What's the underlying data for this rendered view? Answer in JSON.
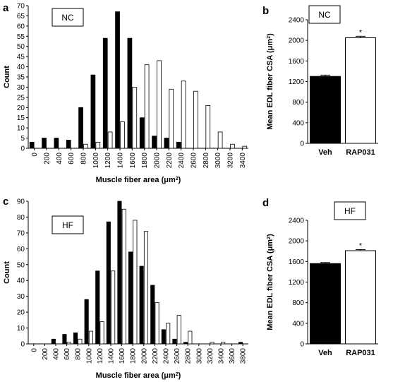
{
  "chart_data": [
    {
      "type": "bar",
      "panel_letter": "a",
      "inset_label": "NC",
      "ylabel": "Count",
      "xlabel": "Muscle fiber area (μm²)",
      "ylim": [
        0,
        70
      ],
      "yticks": [
        0,
        5,
        10,
        15,
        20,
        25,
        30,
        35,
        40,
        45,
        50,
        55,
        60,
        65,
        70
      ],
      "categories": [
        "0",
        "200",
        "400",
        "600",
        "800",
        "1000",
        "1200",
        "1400",
        "1600",
        "1800",
        "2000",
        "2200",
        "2400",
        "2600",
        "2800",
        "3000",
        "3200",
        "3400"
      ],
      "series": [
        {
          "color": "#000000",
          "values": [
            3,
            5,
            5,
            4,
            20,
            36,
            54,
            67,
            54,
            15,
            6,
            5,
            3,
            0,
            0,
            0,
            0,
            0
          ]
        },
        {
          "color": "#ffffff",
          "values": [
            0,
            0,
            0,
            0,
            2,
            3,
            8,
            13,
            30,
            41,
            43,
            29,
            33,
            28,
            21,
            8,
            2,
            1
          ]
        }
      ],
      "legend": "none",
      "grid": false
    },
    {
      "type": "bar",
      "panel_letter": "b",
      "inset_label": "NC",
      "ylabel": "Mean EDL fiber CSA (μm²)",
      "categories": [
        "Veh",
        "RAP031"
      ],
      "values": [
        1300,
        2050
      ],
      "errors": [
        25,
        30
      ],
      "colors": [
        "#000000",
        "#ffffff"
      ],
      "annotations": [
        "",
        "*"
      ],
      "ylim": [
        0,
        2400
      ],
      "yticks": [
        0,
        400,
        800,
        1200,
        1600,
        2000,
        2400
      ]
    },
    {
      "type": "bar",
      "panel_letter": "c",
      "inset_label": "HF",
      "ylabel": "Count",
      "xlabel": "Muscle fiber area (μm²)",
      "ylim": [
        0,
        90
      ],
      "yticks": [
        0,
        10,
        20,
        30,
        40,
        50,
        60,
        70,
        80,
        90
      ],
      "categories": [
        "0",
        "200",
        "400",
        "600",
        "800",
        "1000",
        "1200",
        "1400",
        "1600",
        "1800",
        "2000",
        "2200",
        "2400",
        "2600",
        "2800",
        "3000",
        "3200",
        "3400",
        "3600",
        "3800"
      ],
      "series": [
        {
          "color": "#000000",
          "values": [
            0,
            0,
            3,
            6,
            7,
            28,
            46,
            77,
            90,
            58,
            49,
            37,
            9,
            3,
            1,
            0,
            0,
            0,
            0,
            1
          ]
        },
        {
          "color": "#ffffff",
          "values": [
            0,
            0,
            0,
            1,
            3,
            8,
            14,
            46,
            85,
            78,
            71,
            26,
            13,
            18,
            8,
            0,
            1,
            1,
            0,
            0
          ]
        }
      ],
      "legend": "none",
      "grid": false
    },
    {
      "type": "bar",
      "panel_letter": "d",
      "inset_label": "HF",
      "ylabel": "Mean EDL fiber CSA (μm²)",
      "categories": [
        "Veh",
        "RAP031"
      ],
      "values": [
        1560,
        1810
      ],
      "errors": [
        20,
        20
      ],
      "colors": [
        "#000000",
        "#ffffff"
      ],
      "annotations": [
        "",
        "*"
      ],
      "ylim": [
        0,
        2400
      ],
      "yticks": [
        0,
        400,
        800,
        1200,
        1600,
        2000,
        2400
      ]
    }
  ]
}
